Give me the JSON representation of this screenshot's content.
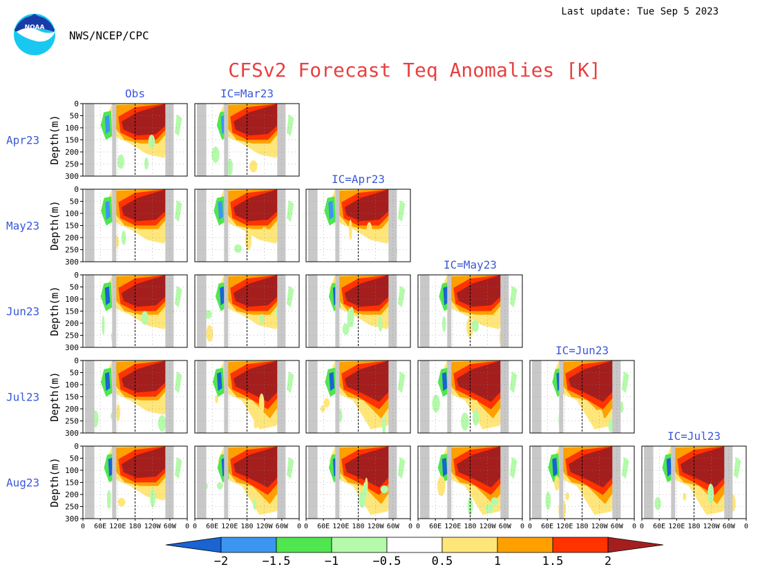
{
  "header": {
    "agency": "NWS/NCEP/CPC",
    "last_update": "Last update: Tue Sep 5 2023",
    "logo_text": "NOAA"
  },
  "colors": {
    "title": "#e84040",
    "label": "#3a58d8",
    "text": "#000000",
    "land_mask": "#c8c8c8",
    "bins": [
      "#1a64d2",
      "#3c96f0",
      "#50e650",
      "#b4faaa",
      "#ffffff",
      "#ffe67a",
      "#ffa000",
      "#ff3200",
      "#a51e1e"
    ]
  },
  "chart_data": {
    "type": "heatmap",
    "title": "CFSv2 Forecast Teq Anomalies [K]",
    "ylabel": "Depth(m)",
    "xlabel": "",
    "x_ticks": [
      "0",
      "60E",
      "120E",
      "180",
      "120W",
      "60W",
      "0"
    ],
    "y_ticks": [
      0,
      50,
      100,
      150,
      200,
      250,
      300
    ],
    "ylim": [
      300,
      0
    ],
    "rows": [
      "Apr23",
      "May23",
      "Jun23",
      "Jul23",
      "Aug23"
    ],
    "columns": [
      "Obs",
      "IC=Mar23",
      "IC=Apr23",
      "IC=May23",
      "IC=Jun23",
      "IC=Jul23"
    ],
    "colorbar": {
      "levels": [
        -2,
        -1.5,
        -1,
        -0.5,
        0.5,
        1,
        1.5,
        2
      ],
      "labels": [
        "−2",
        "−1.5",
        "−1",
        "−0.5",
        "0.5",
        "1",
        "1.5",
        "2"
      ],
      "extend": "both"
    },
    "panels": [
      {
        "row": "Apr23",
        "column": "Obs",
        "title": "Obs"
      },
      {
        "row": "Apr23",
        "column": "IC=Mar23",
        "title": "IC=Mar23"
      },
      {
        "row": "May23",
        "column": "Obs"
      },
      {
        "row": "May23",
        "column": "IC=Mar23"
      },
      {
        "row": "May23",
        "column": "IC=Apr23",
        "title": "IC=Apr23"
      },
      {
        "row": "Jun23",
        "column": "Obs"
      },
      {
        "row": "Jun23",
        "column": "IC=Mar23"
      },
      {
        "row": "Jun23",
        "column": "IC=Apr23"
      },
      {
        "row": "Jun23",
        "column": "IC=May23",
        "title": "IC=May23"
      },
      {
        "row": "Jul23",
        "column": "Obs"
      },
      {
        "row": "Jul23",
        "column": "IC=Mar23"
      },
      {
        "row": "Jul23",
        "column": "IC=Apr23"
      },
      {
        "row": "Jul23",
        "column": "IC=May23"
      },
      {
        "row": "Jul23",
        "column": "IC=Jun23",
        "title": "IC=Jun23"
      },
      {
        "row": "Aug23",
        "column": "Obs"
      },
      {
        "row": "Aug23",
        "column": "IC=Mar23"
      },
      {
        "row": "Aug23",
        "column": "IC=Apr23"
      },
      {
        "row": "Aug23",
        "column": "IC=May23"
      },
      {
        "row": "Aug23",
        "column": "IC=Jun23"
      },
      {
        "row": "Aug23",
        "column": "IC=Jul23",
        "title": "IC=Jul23"
      }
    ]
  }
}
